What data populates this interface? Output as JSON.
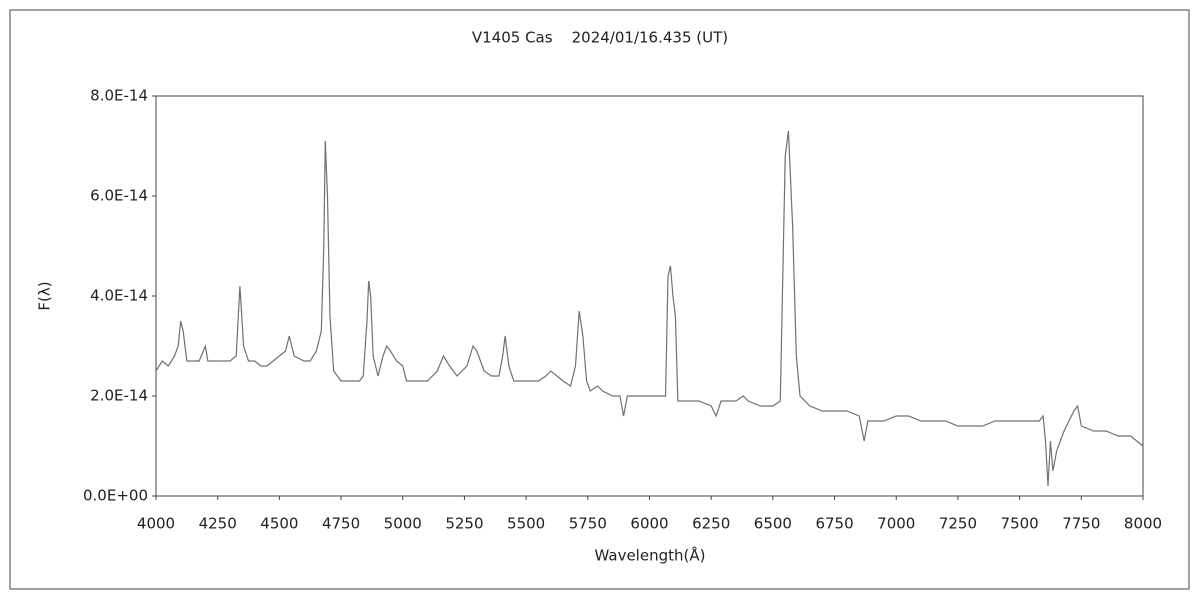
{
  "chart_data": {
    "type": "line",
    "title": "V1405 Cas    2024/01/16.435 (UT)",
    "x_label": "Wavelength(Å)",
    "y_label": "F(λ)",
    "color": "#707070",
    "xlim": [
      4000,
      8000
    ],
    "xticks": [
      4000,
      4250,
      4500,
      4750,
      5000,
      5250,
      5500,
      5750,
      6000,
      6250,
      6500,
      6750,
      7000,
      7250,
      7500,
      7750,
      8000
    ],
    "ylim": [
      0,
      8e-14
    ],
    "yticks": [
      {
        "value": 0,
        "label": "0.0E+00"
      },
      {
        "value": 2e-14,
        "label": "2.0E-14"
      },
      {
        "value": 4e-14,
        "label": "4.0E-14"
      },
      {
        "value": 6e-14,
        "label": "6.0E-14"
      },
      {
        "value": 8e-14,
        "label": "8.0E-14"
      }
    ],
    "x": [
      4000,
      4025,
      4050,
      4075,
      4090,
      4100,
      4110,
      4125,
      4150,
      4175,
      4200,
      4210,
      4250,
      4275,
      4300,
      4325,
      4340,
      4355,
      4375,
      4400,
      4425,
      4450,
      4475,
      4500,
      4525,
      4540,
      4560,
      4600,
      4625,
      4650,
      4670,
      4680,
      4686,
      4695,
      4705,
      4720,
      4750,
      4775,
      4800,
      4825,
      4840,
      4855,
      4862,
      4870,
      4880,
      4900,
      4920,
      4935,
      4950,
      4975,
      5000,
      5015,
      5050,
      5100,
      5140,
      5165,
      5190,
      5220,
      5260,
      5285,
      5300,
      5330,
      5360,
      5390,
      5405,
      5415,
      5430,
      5450,
      5500,
      5550,
      5580,
      5600,
      5625,
      5650,
      5680,
      5700,
      5715,
      5730,
      5745,
      5760,
      5790,
      5810,
      5850,
      5880,
      5895,
      5910,
      5950,
      6000,
      6050,
      6065,
      6075,
      6085,
      6095,
      6105,
      6115,
      6150,
      6200,
      6250,
      6270,
      6290,
      6350,
      6380,
      6400,
      6450,
      6500,
      6530,
      6550,
      6563,
      6580,
      6595,
      6610,
      6650,
      6700,
      6750,
      6800,
      6850,
      6870,
      6885,
      6950,
      7000,
      7050,
      7100,
      7150,
      7200,
      7250,
      7300,
      7350,
      7400,
      7450,
      7500,
      7550,
      7580,
      7595,
      7605,
      7615,
      7625,
      7635,
      7650,
      7680,
      7700,
      7720,
      7735,
      7750,
      7800,
      7850,
      7900,
      7950,
      7975,
      8000
    ],
    "values": [
      2.5e-14,
      2.7e-14,
      2.6e-14,
      2.8e-14,
      3e-14,
      3.5e-14,
      3.3e-14,
      2.7e-14,
      2.7e-14,
      2.7e-14,
      3e-14,
      2.7e-14,
      2.7e-14,
      2.7e-14,
      2.7e-14,
      2.8e-14,
      4.2e-14,
      3e-14,
      2.7e-14,
      2.7e-14,
      2.6e-14,
      2.6e-14,
      2.7e-14,
      2.8e-14,
      2.9e-14,
      3.2e-14,
      2.8e-14,
      2.7e-14,
      2.7e-14,
      2.9e-14,
      3.3e-14,
      5e-14,
      7.1e-14,
      6e-14,
      3.6e-14,
      2.5e-14,
      2.3e-14,
      2.3e-14,
      2.3e-14,
      2.3e-14,
      2.4e-14,
      3.5e-14,
      4.3e-14,
      4e-14,
      2.8e-14,
      2.4e-14,
      2.8e-14,
      3e-14,
      2.9e-14,
      2.7e-14,
      2.6e-14,
      2.3e-14,
      2.3e-14,
      2.3e-14,
      2.5e-14,
      2.8e-14,
      2.6e-14,
      2.4e-14,
      2.6e-14,
      3e-14,
      2.9e-14,
      2.5e-14,
      2.4e-14,
      2.4e-14,
      2.8e-14,
      3.2e-14,
      2.6e-14,
      2.3e-14,
      2.3e-14,
      2.3e-14,
      2.4e-14,
      2.5e-14,
      2.4e-14,
      2.3e-14,
      2.2e-14,
      2.6e-14,
      3.7e-14,
      3.2e-14,
      2.3e-14,
      2.1e-14,
      2.2e-14,
      2.1e-14,
      2e-14,
      2e-14,
      1.6e-14,
      2e-14,
      2e-14,
      2e-14,
      2e-14,
      2e-14,
      4.4e-14,
      4.6e-14,
      4e-14,
      3.6e-14,
      1.9e-14,
      1.9e-14,
      1.9e-14,
      1.8e-14,
      1.6e-14,
      1.9e-14,
      1.9e-14,
      2e-14,
      1.9e-14,
      1.8e-14,
      1.8e-14,
      1.9e-14,
      6.8e-14,
      7.3e-14,
      5.4e-14,
      2.8e-14,
      2e-14,
      1.8e-14,
      1.7e-14,
      1.7e-14,
      1.7e-14,
      1.6e-14,
      1.1e-14,
      1.5e-14,
      1.5e-14,
      1.6e-14,
      1.6e-14,
      1.5e-14,
      1.5e-14,
      1.5e-14,
      1.4e-14,
      1.4e-14,
      1.4e-14,
      1.5e-14,
      1.5e-14,
      1.5e-14,
      1.5e-14,
      1.5e-14,
      1.6e-14,
      1.1e-14,
      2e-15,
      1.1e-14,
      5e-15,
      9e-15,
      1.3e-14,
      1.5e-14,
      1.7e-14,
      1.8e-14,
      1.4e-14,
      1.3e-14,
      1.3e-14,
      1.2e-14,
      1.2e-14,
      1.1e-14,
      1e-14
    ]
  }
}
